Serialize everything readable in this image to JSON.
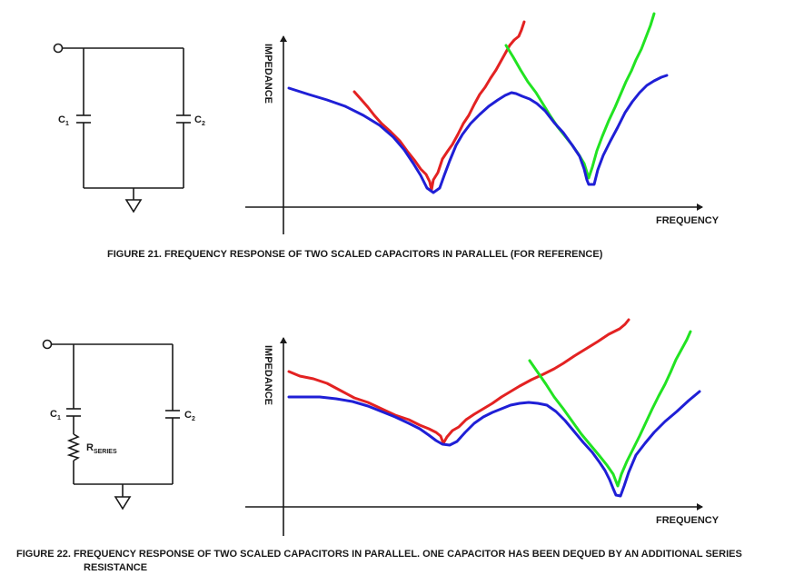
{
  "figure21": {
    "caption": "FIGURE 21.  FREQUENCY RESPONSE OF TWO SCALED CAPACITORS IN PARALLEL (FOR REFERENCE)",
    "y_axis": "IMPEDANCE",
    "x_axis": "FREQUENCY",
    "c1": {
      "main": "C",
      "sub": "1"
    },
    "c2": {
      "main": "C",
      "sub": "2"
    }
  },
  "figure22": {
    "caption_line1": "FIGURE 22.  FREQUENCY RESPONSE OF TWO SCALED CAPACITORS IN PARALLEL. ONE CAPACITOR HAS BEEN DEQUED BY AN ADDITIONAL SERIES",
    "caption_line2": "RESISTANCE",
    "y_axis": "IMPEDANCE",
    "x_axis": "FREQUENCY",
    "c1": {
      "main": "C",
      "sub": "1"
    },
    "c2": {
      "main": "C",
      "sub": "2"
    },
    "r_series": {
      "main": "R",
      "sub": "SERIES"
    }
  },
  "colors": {
    "combined": "#1f1fd6",
    "c1_curve": "#e32222",
    "c2_curve": "#22e322",
    "line": "#1a1a1a"
  }
}
